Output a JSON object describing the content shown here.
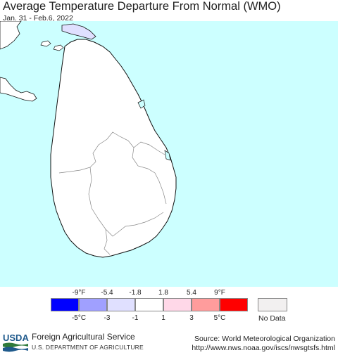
{
  "header": {
    "title": "Average Temperature Departure From Normal (WMO)",
    "date_range": "Jan. 31 - Feb.6, 2022"
  },
  "map": {
    "ocean_color": "#ccffff",
    "land_color": "#ffffff",
    "border_color": "#111111"
  },
  "legend": {
    "fahrenheit_labels": [
      "-9°F",
      "-5.4",
      "-1.8",
      "1.8",
      "5.4",
      "9°F"
    ],
    "celsius_labels": [
      "-5°C",
      "-3",
      "-1",
      "1",
      "3",
      "5°C"
    ],
    "colors": [
      "#0000ff",
      "#a0a0ff",
      "#e0e0ff",
      "#ffffff",
      "#ffd8e8",
      "#ff9c9c",
      "#ff0000"
    ],
    "no_data_label": "No Data",
    "no_data_color": "#f2f0f0"
  },
  "footer": {
    "logo_text": "USDA",
    "agency_name": "Foreign Agricultural Service",
    "agency_dept": "U.S. DEPARTMENT OF AGRICULTURE",
    "source": "Source: World Meteorological Organization",
    "url": "http://www.nws.noaa.gov/iscs/nwsgtsfs.html"
  }
}
